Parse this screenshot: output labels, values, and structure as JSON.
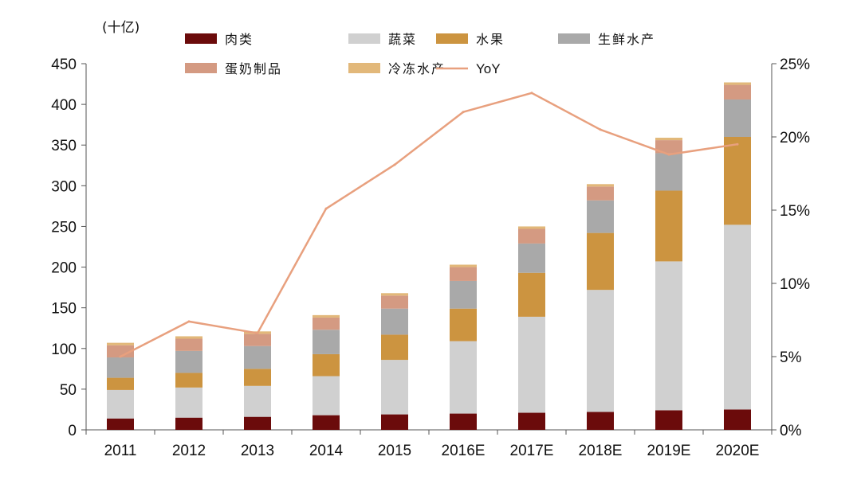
{
  "chart_data": {
    "type": "bar",
    "stacked": true,
    "unit_label": "(十亿)",
    "categories": [
      "2011",
      "2012",
      "2013",
      "2014",
      "2015",
      "2016E",
      "2017E",
      "2018E",
      "2019E",
      "2020E"
    ],
    "series": [
      {
        "name": "肉类",
        "color": "#6b0b0b",
        "values": [
          14,
          15,
          16,
          18,
          19,
          20,
          21,
          22,
          24,
          25
        ]
      },
      {
        "name": "蔬菜",
        "color": "#d0d0d0",
        "values": [
          35,
          37,
          38,
          48,
          67,
          89,
          118,
          150,
          183,
          227
        ]
      },
      {
        "name": "水果",
        "color": "#cc9440",
        "values": [
          15,
          18,
          21,
          27,
          31,
          40,
          54,
          70,
          87,
          108
        ]
      },
      {
        "name": "生鲜水产",
        "color": "#a9a9a9",
        "values": [
          25,
          27,
          28,
          30,
          32,
          34,
          36,
          40,
          46,
          46
        ]
      },
      {
        "name": "蛋奶制品",
        "color": "#d49a82",
        "values": [
          15,
          15,
          15,
          15,
          16,
          17,
          18,
          17,
          16,
          18
        ]
      },
      {
        "name": "冷冻水产",
        "color": "#e2b87a",
        "values": [
          3,
          3,
          3,
          3,
          3,
          3,
          3,
          3,
          3,
          3
        ]
      }
    ],
    "line": {
      "name": "YoY",
      "color": "#e8a07e",
      "values": [
        5.0,
        7.4,
        6.6,
        15.1,
        18.1,
        21.7,
        23.0,
        20.5,
        18.8,
        19.5
      ]
    },
    "y_left": {
      "min": 0,
      "max": 450,
      "ticks": [
        "0",
        "50",
        "100",
        "150",
        "200",
        "250",
        "300",
        "350",
        "400",
        "450"
      ]
    },
    "y_right": {
      "min": 0,
      "max": 25,
      "ticks": [
        "0%",
        "5%",
        "10%",
        "15%",
        "20%",
        "25%"
      ]
    },
    "legend": "top"
  }
}
